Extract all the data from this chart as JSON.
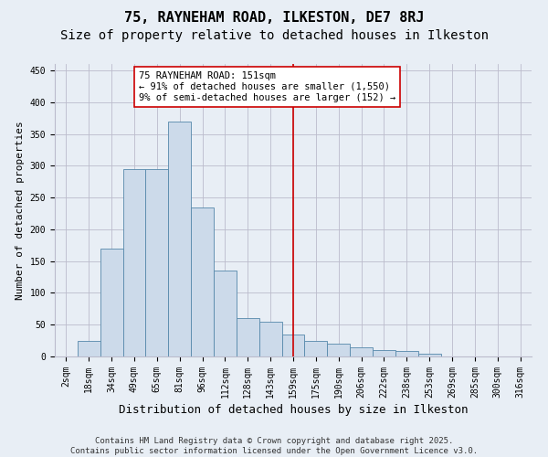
{
  "title": "75, RAYNEHAM ROAD, ILKESTON, DE7 8RJ",
  "subtitle": "Size of property relative to detached houses in Ilkeston",
  "xlabel": "Distribution of detached houses by size in Ilkeston",
  "ylabel": "Number of detached properties",
  "bin_labels": [
    "2sqm",
    "18sqm",
    "34sqm",
    "49sqm",
    "65sqm",
    "81sqm",
    "96sqm",
    "112sqm",
    "128sqm",
    "143sqm",
    "159sqm",
    "175sqm",
    "190sqm",
    "206sqm",
    "222sqm",
    "238sqm",
    "253sqm",
    "269sqm",
    "285sqm",
    "300sqm",
    "316sqm"
  ],
  "bar_values": [
    0,
    25,
    170,
    295,
    295,
    370,
    235,
    135,
    60,
    55,
    35,
    25,
    20,
    15,
    10,
    8,
    5,
    0,
    0,
    0,
    0
  ],
  "bar_color": "#ccdaea",
  "bar_edge_color": "#5588aa",
  "grid_color": "#bbbbcc",
  "background_color": "#e8eef5",
  "vline_x_index": 10.0,
  "vline_color": "#cc0000",
  "annotation_text": "75 RAYNEHAM ROAD: 151sqm\n← 91% of detached houses are smaller (1,550)\n9% of semi-detached houses are larger (152) →",
  "annotation_box_color": "#ffffff",
  "annotation_box_edge_color": "#cc0000",
  "ylim": [
    0,
    460
  ],
  "yticks": [
    0,
    50,
    100,
    150,
    200,
    250,
    300,
    350,
    400,
    450
  ],
  "footer_line1": "Contains HM Land Registry data © Crown copyright and database right 2025.",
  "footer_line2": "Contains public sector information licensed under the Open Government Licence v3.0.",
  "title_fontsize": 11,
  "subtitle_fontsize": 10,
  "xlabel_fontsize": 9,
  "ylabel_fontsize": 8,
  "tick_fontsize": 7,
  "annotation_fontsize": 7.5,
  "footer_fontsize": 6.5
}
